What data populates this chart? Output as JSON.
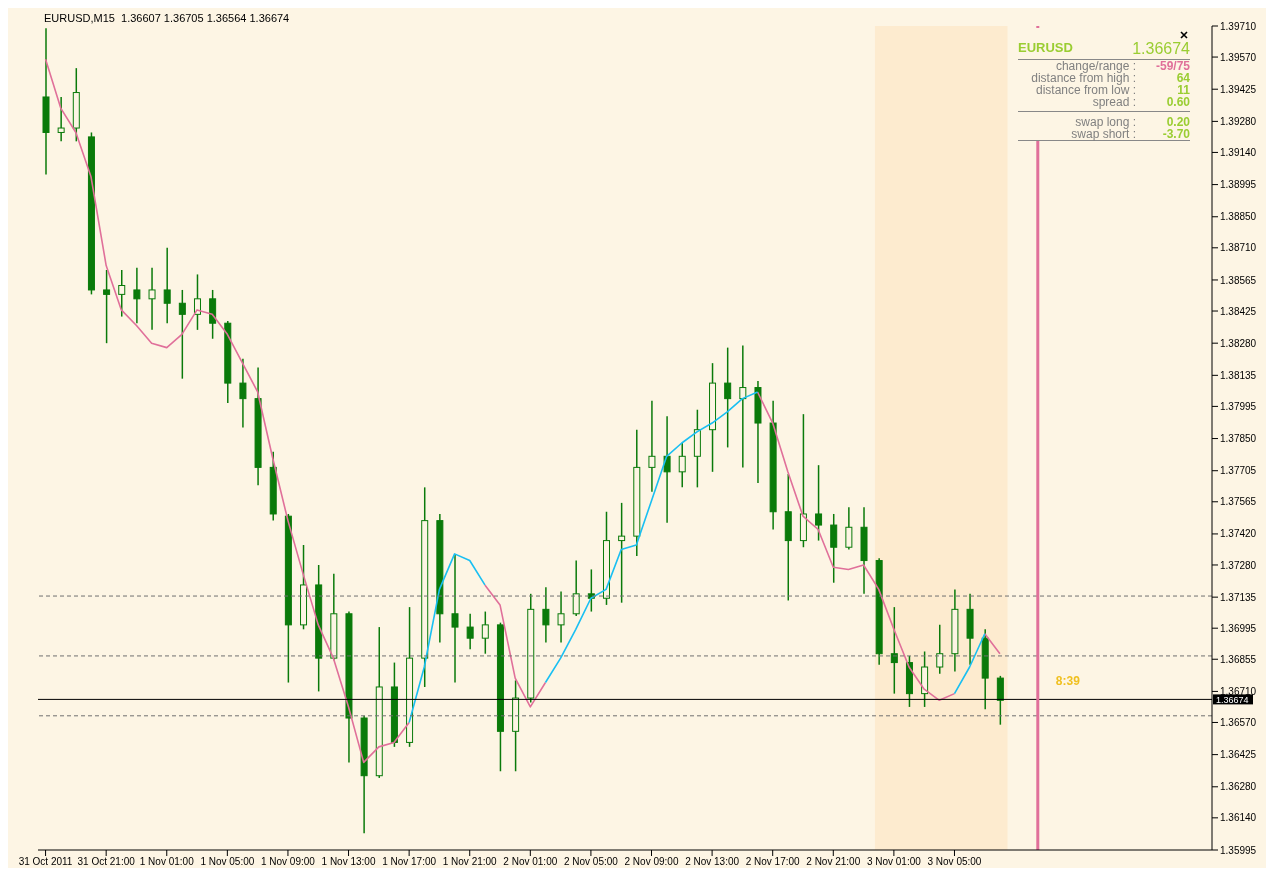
{
  "chart_data": {
    "type": "candlestick",
    "title": "EURUSD,M15  1.36607 1.36705 1.36564 1.36674",
    "color": "#0a7a0a",
    "x": [
      "2011-10-31T17:00",
      "2011-10-31T18:00",
      "2011-10-31T19:00",
      "2011-10-31T20:00",
      "2011-10-31T21:00",
      "2011-10-31T22:00",
      "2011-10-31T23:00",
      "2011-11-01T00:00",
      "2011-11-01T01:00",
      "2011-11-01T02:00",
      "2011-11-01T03:00",
      "2011-11-01T04:00",
      "2011-11-01T05:00",
      "2011-11-01T06:00",
      "2011-11-01T07:00",
      "2011-11-01T08:00",
      "2011-11-01T09:00",
      "2011-11-01T10:00",
      "2011-11-01T11:00",
      "2011-11-01T12:00",
      "2011-11-01T13:00",
      "2011-11-01T14:00",
      "2011-11-01T15:00",
      "2011-11-01T16:00",
      "2011-11-01T17:00",
      "2011-11-01T18:00",
      "2011-11-01T19:00",
      "2011-11-01T20:00",
      "2011-11-01T21:00",
      "2011-11-01T22:00",
      "2011-11-01T23:00",
      "2011-11-02T00:00",
      "2011-11-02T01:00",
      "2011-11-02T02:00",
      "2011-11-02T03:00",
      "2011-11-02T04:00",
      "2011-11-02T05:00",
      "2011-11-02T06:00",
      "2011-11-02T07:00",
      "2011-11-02T08:00",
      "2011-11-02T09:00",
      "2011-11-02T10:00",
      "2011-11-02T11:00",
      "2011-11-02T12:00",
      "2011-11-02T13:00",
      "2011-11-02T14:00",
      "2011-11-02T15:00",
      "2011-11-02T16:00",
      "2011-11-02T17:00",
      "2011-11-02T18:00",
      "2011-11-02T19:00",
      "2011-11-02T20:00",
      "2011-11-02T21:00",
      "2011-11-02T22:00",
      "2011-11-02T23:00",
      "2011-11-03T00:00",
      "2011-11-03T01:00",
      "2011-11-03T02:00",
      "2011-11-03T03:00",
      "2011-11-03T04:00",
      "2011-11-03T05:00",
      "2011-11-03T06:00",
      "2011-11-03T07:00",
      "2011-11-03T08:00"
    ],
    "ohlc": [
      [
        1.3939,
        1.397,
        1.3904,
        1.3923
      ],
      [
        1.3923,
        1.3939,
        1.3919,
        1.3925
      ],
      [
        1.3925,
        1.3952,
        1.3919,
        1.3941
      ],
      [
        1.3921,
        1.3923,
        1.385,
        1.3852
      ],
      [
        1.3852,
        1.3861,
        1.3828,
        1.385
      ],
      [
        1.385,
        1.3861,
        1.384,
        1.3854
      ],
      [
        1.3852,
        1.3862,
        1.3837,
        1.3848
      ],
      [
        1.3848,
        1.3862,
        1.3834,
        1.3852
      ],
      [
        1.3852,
        1.3871,
        1.3837,
        1.3846
      ],
      [
        1.3846,
        1.3852,
        1.3812,
        1.3841
      ],
      [
        1.3841,
        1.3859,
        1.3834,
        1.3848
      ],
      [
        1.3848,
        1.3852,
        1.383,
        1.3837
      ],
      [
        1.3837,
        1.3838,
        1.3801,
        1.381
      ],
      [
        1.381,
        1.3821,
        1.379,
        1.3803
      ],
      [
        1.3803,
        1.3817,
        1.3764,
        1.3772
      ],
      [
        1.3772,
        1.3779,
        1.3748,
        1.3751
      ],
      [
        1.375,
        1.3751,
        1.3675,
        1.3701
      ],
      [
        1.3701,
        1.3737,
        1.3699,
        1.3719
      ],
      [
        1.3719,
        1.3728,
        1.3671,
        1.3686
      ],
      [
        1.3686,
        1.3724,
        1.3685,
        1.3706
      ],
      [
        1.3706,
        1.3707,
        1.3639,
        1.3659
      ],
      [
        1.3659,
        1.366,
        1.3607,
        1.3633
      ],
      [
        1.3633,
        1.37,
        1.3632,
        1.3673
      ],
      [
        1.3673,
        1.3684,
        1.3646,
        1.3648
      ],
      [
        1.3648,
        1.3709,
        1.3646,
        1.3686
      ],
      [
        1.3686,
        1.3763,
        1.3673,
        1.3748
      ],
      [
        1.3748,
        1.3751,
        1.3693,
        1.3706
      ],
      [
        1.3706,
        1.3733,
        1.3675,
        1.37
      ],
      [
        1.37,
        1.3706,
        1.369,
        1.3695
      ],
      [
        1.3695,
        1.3707,
        1.3688,
        1.3701
      ],
      [
        1.3701,
        1.3702,
        1.3635,
        1.3653
      ],
      [
        1.3653,
        1.3676,
        1.3635,
        1.3668
      ],
      [
        1.3668,
        1.3715,
        1.3666,
        1.3708
      ],
      [
        1.3708,
        1.3718,
        1.3693,
        1.3701
      ],
      [
        1.3701,
        1.3716,
        1.3693,
        1.3706
      ],
      [
        1.3706,
        1.373,
        1.3705,
        1.3715
      ],
      [
        1.3715,
        1.3726,
        1.3707,
        1.3713
      ],
      [
        1.3713,
        1.3752,
        1.371,
        1.3739
      ],
      [
        1.3739,
        1.3756,
        1.3711,
        1.3741
      ],
      [
        1.3741,
        1.3789,
        1.3732,
        1.3772
      ],
      [
        1.3772,
        1.3802,
        1.3761,
        1.3777
      ],
      [
        1.3777,
        1.3795,
        1.3747,
        1.377
      ],
      [
        1.377,
        1.3783,
        1.3763,
        1.3777
      ],
      [
        1.3777,
        1.3798,
        1.3763,
        1.3789
      ],
      [
        1.3789,
        1.3819,
        1.377,
        1.381
      ],
      [
        1.381,
        1.3826,
        1.3781,
        1.3803
      ],
      [
        1.3803,
        1.3827,
        1.3772,
        1.3808
      ],
      [
        1.3808,
        1.3811,
        1.3765,
        1.3792
      ],
      [
        1.3792,
        1.3802,
        1.3744,
        1.3752
      ],
      [
        1.3752,
        1.3769,
        1.3712,
        1.3739
      ],
      [
        1.3739,
        1.3796,
        1.3736,
        1.3751
      ],
      [
        1.3751,
        1.3773,
        1.3739,
        1.3746
      ],
      [
        1.3746,
        1.3751,
        1.372,
        1.3736
      ],
      [
        1.3736,
        1.3754,
        1.3735,
        1.3745
      ],
      [
        1.3745,
        1.3754,
        1.3715,
        1.373
      ],
      [
        1.373,
        1.3731,
        1.3683,
        1.3688
      ],
      [
        1.3688,
        1.3709,
        1.367,
        1.3684
      ],
      [
        1.3684,
        1.3687,
        1.3664,
        1.367
      ],
      [
        1.367,
        1.3689,
        1.3664,
        1.3682
      ],
      [
        1.3682,
        1.3701,
        1.3679,
        1.3688
      ],
      [
        1.3688,
        1.3717,
        1.368,
        1.3708
      ],
      [
        1.3708,
        1.3715,
        1.3683,
        1.3695
      ],
      [
        1.3695,
        1.3699,
        1.3663,
        1.3677
      ],
      [
        1.3677,
        1.3678,
        1.3656,
        1.3667
      ]
    ],
    "series": [
      {
        "type": "line",
        "color": "#e0709a",
        "values": [
          1.3956,
          1.3934,
          1.3923,
          1.3903,
          1.3863,
          1.3843,
          1.3836,
          1.3828,
          1.3826,
          1.3832,
          1.3843,
          1.3841,
          1.3832,
          1.3819,
          1.3806,
          1.3776,
          1.3748,
          1.3724,
          1.3701,
          1.3686,
          1.3664,
          1.3639,
          1.3646,
          1.3648,
          1.3657,
          null,
          null,
          null,
          null,
          1.3719,
          1.371,
          1.3677,
          1.3664,
          1.3675,
          null,
          null,
          null,
          null,
          null,
          null,
          null,
          null,
          null,
          null,
          null,
          null,
          null,
          1.3806,
          1.3792,
          1.377,
          1.375,
          1.3744,
          1.3727,
          1.3726,
          1.3728,
          1.3717,
          1.3699,
          1.3682,
          1.3672,
          1.3667,
          1.367,
          null,
          1.3697,
          1.3688
        ]
      },
      {
        "type": "line",
        "color": "#19bff2",
        "values": [
          null,
          null,
          null,
          null,
          null,
          null,
          null,
          null,
          null,
          null,
          null,
          null,
          null,
          null,
          null,
          null,
          null,
          null,
          null,
          null,
          null,
          null,
          null,
          null,
          1.3657,
          1.3682,
          1.3717,
          1.3733,
          1.373,
          1.3719,
          null,
          null,
          null,
          1.3675,
          1.3686,
          1.3699,
          1.3713,
          1.3717,
          1.3735,
          1.3737,
          1.3757,
          1.3777,
          1.3783,
          1.3788,
          1.3792,
          1.3797,
          1.3803,
          1.3806,
          null,
          null,
          null,
          null,
          null,
          null,
          null,
          null,
          null,
          null,
          null,
          null,
          1.367,
          1.3682,
          1.3697,
          null
        ]
      }
    ],
    "xlim": [
      "2011-10-31T16:30",
      "2011-11-03T22:00"
    ],
    "xticks": [
      {
        "value": "2011-10-31T17:00",
        "label": "31 Oct 2011"
      },
      {
        "value": "2011-10-31T21:00",
        "label": "31 Oct 21:00"
      },
      {
        "value": "2011-11-01T01:00",
        "label": "1 Nov 01:00"
      },
      {
        "value": "2011-11-01T05:00",
        "label": "1 Nov 05:00"
      },
      {
        "value": "2011-11-01T09:00",
        "label": "1 Nov 09:00"
      },
      {
        "value": "2011-11-01T13:00",
        "label": "1 Nov 13:00"
      },
      {
        "value": "2011-11-01T17:00",
        "label": "1 Nov 17:00"
      },
      {
        "value": "2011-11-01T21:00",
        "label": "1 Nov 21:00"
      },
      {
        "value": "2011-11-02T01:00",
        "label": "2 Nov 01:00"
      },
      {
        "value": "2011-11-02T05:00",
        "label": "2 Nov 05:00"
      },
      {
        "value": "2011-11-02T09:00",
        "label": "2 Nov 09:00"
      },
      {
        "value": "2011-11-02T13:00",
        "label": "2 Nov 13:00"
      },
      {
        "value": "2011-11-02T17:00",
        "label": "2 Nov 17:00"
      },
      {
        "value": "2011-11-02T21:00",
        "label": "2 Nov 21:00"
      },
      {
        "value": "2011-11-03T01:00",
        "label": "3 Nov 01:00"
      },
      {
        "value": "2011-11-03T05:00",
        "label": "3 Nov 05:00"
      }
    ],
    "ylim": [
      1.35995,
      1.3971
    ],
    "yticks": [
      {
        "value": 1.3971,
        "label": "1.39710"
      },
      {
        "value": 1.3957,
        "label": "1.39570"
      },
      {
        "value": 1.39425,
        "label": "1.39425"
      },
      {
        "value": 1.3928,
        "label": "1.39280"
      },
      {
        "value": 1.3914,
        "label": "1.39140"
      },
      {
        "value": 1.38995,
        "label": "1.38995"
      },
      {
        "value": 1.3885,
        "label": "1.38850"
      },
      {
        "value": 1.3871,
        "label": "1.38710"
      },
      {
        "value": 1.38565,
        "label": "1.38565"
      },
      {
        "value": 1.38425,
        "label": "1.38425"
      },
      {
        "value": 1.3828,
        "label": "1.38280"
      },
      {
        "value": 1.38135,
        "label": "1.38135"
      },
      {
        "value": 1.37995,
        "label": "1.37995"
      },
      {
        "value": 1.3785,
        "label": "1.37850"
      },
      {
        "value": 1.37705,
        "label": "1.37705"
      },
      {
        "value": 1.37565,
        "label": "1.37565"
      },
      {
        "value": 1.3742,
        "label": "1.37420"
      },
      {
        "value": 1.3728,
        "label": "1.37280"
      },
      {
        "value": 1.37135,
        "label": "1.37135"
      },
      {
        "value": 1.36995,
        "label": "1.36995"
      },
      {
        "value": 1.36855,
        "label": "1.36855"
      },
      {
        "value": 1.3671,
        "label": "1.36710"
      },
      {
        "value": 1.3657,
        "label": "1.36570"
      },
      {
        "value": 1.36425,
        "label": "1.36425"
      },
      {
        "value": 1.3628,
        "label": "1.36280"
      },
      {
        "value": 1.3614,
        "label": "1.36140"
      },
      {
        "value": 1.35995,
        "label": "1.35995"
      }
    ],
    "bands": [
      {
        "axis": "x",
        "from": "2011-11-02T23:45",
        "to": "2011-11-03T08:30",
        "color": "#fdebcf"
      }
    ],
    "ref_lines": [
      {
        "axis": "y",
        "value": 1.3714,
        "color": "#707070",
        "line_style": "dashed"
      },
      {
        "axis": "y",
        "value": 1.3687,
        "color": "#707070",
        "line_style": "dashed"
      },
      {
        "axis": "y",
        "value": 1.366,
        "color": "#707070",
        "line_style": "dashed"
      },
      {
        "axis": "y",
        "value": 1.36674,
        "label": "1.36674",
        "color": "#000000"
      },
      {
        "axis": "x",
        "value": "2011-11-03T10:30",
        "label": "8:39",
        "color": "#e0709a"
      }
    ],
    "annotations": [
      "EURUSD",
      "1.36674",
      "change/range :",
      "-59/75",
      "distance from high :",
      "64",
      "distance from low :",
      "11",
      "spread :",
      "0.60",
      "swap long :",
      "0.20",
      "swap short :",
      "-3.70"
    ]
  }
}
